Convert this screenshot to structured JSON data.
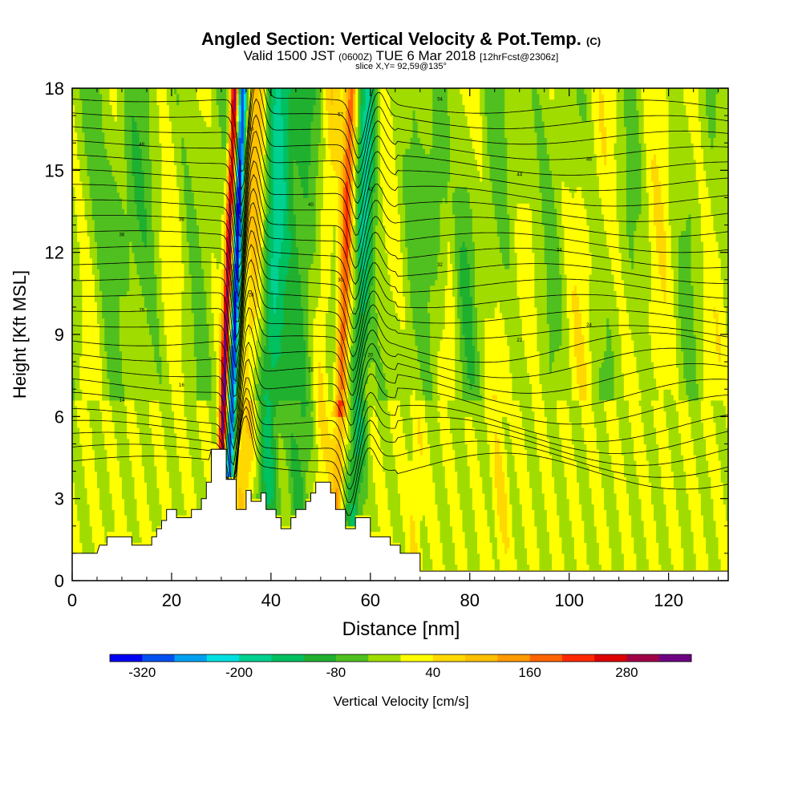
{
  "title": {
    "main": "Angled Section: Vertical Velocity & Pot.Temp.",
    "unit": "(C)",
    "valid_prefix": "Valid 1500 JST",
    "valid_z": "(0600Z)",
    "valid_date": "TUE 6 Mar 2018",
    "fcst": "[12hrFcst@2306z]",
    "slice": "slice X,Y= 92,59@135°"
  },
  "chart_data": {
    "type": "heatmap",
    "xlabel": "Distance [nm]",
    "ylabel": "Height [Kft MSL]",
    "xlim": [
      0,
      132
    ],
    "ylim": [
      0,
      18
    ],
    "x_ticks": [
      0,
      20,
      40,
      60,
      80,
      100,
      120
    ],
    "y_ticks": [
      0,
      3,
      6,
      9,
      12,
      15,
      18
    ],
    "colorbar": {
      "label": "Vertical Velocity [cm/s]",
      "tick_labels": [
        "-320",
        "-200",
        "-80",
        "40",
        "160",
        "280"
      ],
      "tick_values": [
        -320,
        -200,
        -80,
        40,
        160,
        280
      ],
      "levels": [
        -360,
        -320,
        -280,
        -240,
        -200,
        -160,
        -120,
        -80,
        -40,
        0,
        40,
        80,
        120,
        160,
        200,
        240,
        280,
        320,
        360
      ],
      "colors": [
        "#0000f0",
        "#0050f0",
        "#00a0f0",
        "#00e0e0",
        "#00d090",
        "#00c060",
        "#20b030",
        "#50c020",
        "#a0dc00",
        "#ffff00",
        "#ffd800",
        "#ffc000",
        "#ff9a00",
        "#ff6400",
        "#ff2800",
        "#dc0000",
        "#a00046",
        "#6e0082"
      ]
    },
    "terrain": [
      [
        0,
        1.0
      ],
      [
        5,
        1.0
      ],
      [
        5.5,
        1.3
      ],
      [
        7,
        1.3
      ],
      [
        7,
        1.6
      ],
      [
        12,
        1.6
      ],
      [
        12,
        1.3
      ],
      [
        16,
        1.3
      ],
      [
        16,
        1.6
      ],
      [
        17,
        1.6
      ],
      [
        17,
        1.9
      ],
      [
        18,
        1.9
      ],
      [
        18,
        2.2
      ],
      [
        19,
        2.2
      ],
      [
        19,
        2.6
      ],
      [
        21,
        2.6
      ],
      [
        21,
        2.3
      ],
      [
        24,
        2.3
      ],
      [
        24,
        2.6
      ],
      [
        26,
        2.6
      ],
      [
        26,
        3.0
      ],
      [
        27,
        3.0
      ],
      [
        27,
        3.6
      ],
      [
        28,
        3.6
      ],
      [
        28,
        4.8
      ],
      [
        31,
        4.8
      ],
      [
        31,
        3.7
      ],
      [
        33,
        3.7
      ],
      [
        33,
        2.6
      ],
      [
        35,
        2.6
      ],
      [
        35,
        3.3
      ],
      [
        36,
        3.3
      ],
      [
        36,
        2.9
      ],
      [
        38,
        2.9
      ],
      [
        38,
        3.2
      ],
      [
        39,
        3.2
      ],
      [
        39,
        2.6
      ],
      [
        41,
        2.6
      ],
      [
        41,
        2.3
      ],
      [
        42,
        2.3
      ],
      [
        42,
        1.9
      ],
      [
        44,
        1.9
      ],
      [
        44,
        2.3
      ],
      [
        45,
        2.3
      ],
      [
        45,
        2.6
      ],
      [
        47,
        2.6
      ],
      [
        47,
        2.9
      ],
      [
        48,
        2.9
      ],
      [
        48,
        3.2
      ],
      [
        49,
        3.2
      ],
      [
        49,
        3.6
      ],
      [
        52,
        3.6
      ],
      [
        52,
        3.2
      ],
      [
        53,
        3.2
      ],
      [
        53,
        2.6
      ],
      [
        55,
        2.6
      ],
      [
        55,
        1.9
      ],
      [
        57,
        1.9
      ],
      [
        57,
        2.3
      ],
      [
        60,
        2.3
      ],
      [
        60,
        1.6
      ],
      [
        64,
        1.6
      ],
      [
        64,
        1.3
      ],
      [
        66,
        1.3
      ],
      [
        66,
        1.0
      ],
      [
        70,
        1.0
      ],
      [
        70,
        0.35
      ],
      [
        132,
        0.35
      ]
    ],
    "isentropes": {
      "levels_C": [
        4,
        6,
        8,
        10,
        12,
        14,
        16,
        18,
        20,
        22,
        24,
        26,
        28,
        30,
        32,
        34,
        36,
        38,
        40,
        42,
        44,
        46,
        48,
        50,
        52,
        54
      ],
      "contour_labels": [
        "14",
        "16",
        "18",
        "20",
        "22",
        "24",
        "26",
        "28",
        "30",
        "32",
        "34",
        "36",
        "38",
        "40",
        "42",
        "44",
        "46",
        "48",
        "50",
        "52",
        "54"
      ]
    },
    "vertical_velocity_features": [
      {
        "x": 32,
        "w_cm_s": 320,
        "kind": "updraft"
      },
      {
        "x": 34,
        "w_cm_s": -320,
        "kind": "downdraft"
      },
      {
        "x": 56,
        "w_cm_s": 200,
        "kind": "updraft"
      },
      {
        "x": 58,
        "w_cm_s": -120,
        "kind": "downdraft"
      }
    ]
  }
}
